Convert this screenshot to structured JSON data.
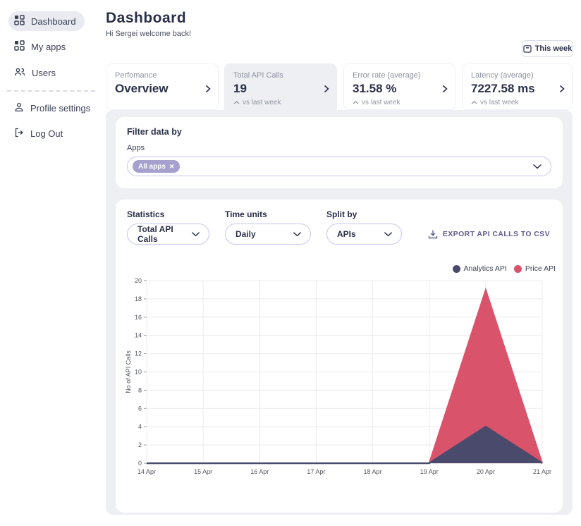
{
  "sidebar": {
    "items": [
      {
        "label": "Dashboard",
        "icon": "grid-icon",
        "active": true
      },
      {
        "label": "My apps",
        "icon": "grid-icon",
        "active": false
      },
      {
        "label": "Users",
        "icon": "users-icon",
        "active": false
      },
      {
        "label": "Profile settings",
        "icon": "person-icon",
        "active": false
      },
      {
        "label": "Log Out",
        "icon": "logout-icon",
        "active": false
      }
    ]
  },
  "header": {
    "title": "Dashboard",
    "greeting": "Hi Sergei welcome back!",
    "period_button": "This week"
  },
  "stat_cards": [
    {
      "label": "Perfomance",
      "value": "Overview",
      "compare": "",
      "selected": false
    },
    {
      "label": "Total API Calls",
      "value": "19",
      "compare": "vs last week",
      "selected": true
    },
    {
      "label": "Error rate (average)",
      "value": "31.58 %",
      "compare": "vs last week",
      "selected": false
    },
    {
      "label": "Latency (average)",
      "value": "7227.58 ms",
      "compare": "vs last week",
      "selected": false
    }
  ],
  "filter": {
    "title": "Filter data by",
    "apps_label": "Apps",
    "chip_label": "All apps",
    "chip_color": "#a6a0cf"
  },
  "controls": {
    "statistics_label": "Statistics",
    "statistics_value": "Total API Calls",
    "time_units_label": "Time units",
    "time_units_value": "Daily",
    "split_by_label": "Split by",
    "split_by_value": "APIs",
    "export_label": "EXPORT API CALLS TO CSV"
  },
  "chart_data": {
    "type": "area",
    "stacked": true,
    "x": [
      "14 Apr",
      "15 Apr",
      "16 Apr",
      "17 Apr",
      "18 Apr",
      "19 Apr",
      "20 Apr",
      "21 Apr"
    ],
    "series": [
      {
        "name": "Analytics API",
        "color": "#4a4a6c",
        "values": [
          0,
          0,
          0,
          0,
          0,
          0,
          4,
          0
        ]
      },
      {
        "name": "Price API",
        "color": "#d9536b",
        "values": [
          0,
          0,
          0,
          0,
          0,
          0,
          15,
          0
        ]
      }
    ],
    "stacked_peak_total": 19,
    "ylabel": "No of API Calls",
    "ylim": [
      0,
      20
    ],
    "ytick_step": 2,
    "grid": true,
    "legend_position": "top-right"
  }
}
